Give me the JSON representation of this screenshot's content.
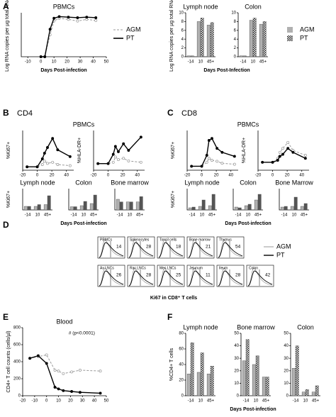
{
  "panels": [
    {
      "label": "A"
    },
    {
      "label": "B",
      "heading": "CD4"
    },
    {
      "label": "C",
      "heading": "CD8"
    },
    {
      "label": "D"
    },
    {
      "label": "E"
    },
    {
      "label": "F"
    }
  ],
  "chart_data": [
    {
      "type": "line",
      "title": "PBMCs",
      "ylabel": "Log RNA copies per µg total RNA",
      "xlabel": "Days Post-infection",
      "x": [
        0,
        3,
        7,
        10,
        14,
        21,
        28,
        35,
        42
      ],
      "xlim": [
        -15,
        50
      ],
      "xticks": [
        -10,
        0,
        10,
        20,
        30,
        40,
        50
      ],
      "ylim": [
        0,
        8
      ],
      "legend": true,
      "series": [
        {
          "name": "AGM",
          "color": "#999999",
          "dashed": true,
          "values": [
            0,
            0,
            4,
            6.5,
            7,
            6.8,
            6.5,
            6.8,
            6.6
          ]
        },
        {
          "name": "PT",
          "color": "#000000",
          "values": [
            0,
            0,
            5,
            7,
            7.3,
            7.2,
            7.1,
            7.2,
            7.1
          ]
        }
      ]
    },
    {
      "type": "bar",
      "title": "Lymph node",
      "ylabel": "Log RNA copies per µg total RNA",
      "xlabel": "Days Post-Infection",
      "categories": [
        "-14",
        "10",
        "45+"
      ],
      "ylim": [
        0,
        10
      ],
      "yticks": [
        0,
        2,
        4,
        6,
        8,
        10
      ],
      "legend": true,
      "series": [
        {
          "name": "AGM",
          "color": "#b0b0b0",
          "values": [
            0.2,
            8,
            7.2
          ]
        },
        {
          "name": "PT",
          "color": "#333333",
          "pattern": "checker",
          "values": [
            0.2,
            8.8,
            7.8
          ]
        }
      ]
    },
    {
      "type": "bar",
      "title": "Colon",
      "categories": [
        "-14",
        "10",
        "45+"
      ],
      "ylim": [
        0,
        10
      ],
      "yticks": [
        0,
        2,
        4,
        6,
        8,
        10
      ],
      "series": [
        {
          "name": "AGM",
          "color": "#b0b0b0",
          "values": [
            0.2,
            8.3,
            7.4
          ]
        },
        {
          "name": "PT",
          "color": "#333333",
          "pattern": "checker",
          "values": [
            0.2,
            8.8,
            8
          ]
        }
      ]
    },
    {
      "type": "line",
      "title": "PBMCs",
      "ylabel": "%Ki67+",
      "x": [
        -14,
        0,
        7,
        10,
        14,
        21,
        28,
        45
      ],
      "xlim": [
        -20,
        50
      ],
      "xticks": [
        -20,
        0,
        20,
        40
      ],
      "ylim": [
        0,
        35
      ],
      "series": [
        {
          "name": "AGM",
          "color": "#999999",
          "dashed": true,
          "values": [
            3,
            3,
            5,
            8,
            6,
            7,
            5,
            4
          ]
        },
        {
          "name": "PT",
          "color": "#000000",
          "values": [
            3,
            3,
            10,
            15,
            20,
            28,
            18,
            12
          ]
        }
      ]
    },
    {
      "type": "line",
      "ylabel": "%HLA-DR+",
      "x": [
        -14,
        0,
        7,
        10,
        14,
        21,
        28,
        45
      ],
      "xlim": [
        -20,
        50
      ],
      "xticks": [
        -20,
        0,
        20,
        40
      ],
      "ylim": [
        0,
        30
      ],
      "series": [
        {
          "name": "AGM",
          "color": "#999999",
          "dashed": true,
          "values": [
            5,
            5,
            6,
            10,
            8,
            9,
            7,
            6
          ]
        },
        {
          "name": "PT",
          "color": "#000000",
          "values": [
            5,
            5,
            12,
            18,
            14,
            20,
            15,
            25
          ]
        }
      ]
    },
    {
      "type": "bar",
      "title": "Lymph node",
      "ylabel": "%Ki67+",
      "categories": [
        "-14",
        "10",
        "45+"
      ],
      "ylim": [
        0,
        12
      ],
      "series": [
        {
          "name": "AGM",
          "color": "#b0b0b0",
          "values": [
            2,
            2,
            3
          ]
        },
        {
          "name": "PT",
          "color": "#555555",
          "values": [
            2,
            3,
            8
          ]
        }
      ]
    },
    {
      "type": "bar",
      "title": "Colon",
      "xlabel": "Days Post-infection",
      "categories": [
        "-14",
        "10",
        "45+"
      ],
      "ylim": [
        0,
        20
      ],
      "series": [
        {
          "name": "AGM",
          "color": "#b0b0b0",
          "values": [
            3,
            4,
            6
          ]
        },
        {
          "name": "PT",
          "color": "#555555",
          "values": [
            3,
            8,
            14
          ]
        }
      ]
    },
    {
      "type": "bar",
      "title": "Bone marrow",
      "categories": [
        "-14",
        "10",
        "45+"
      ],
      "ylim": [
        0,
        8
      ],
      "series": [
        {
          "name": "AGM",
          "color": "#b0b0b0",
          "values": [
            4,
            3,
            3
          ]
        },
        {
          "name": "PT",
          "color": "#555555",
          "values": [
            3,
            3,
            5
          ]
        }
      ]
    },
    {
      "type": "line",
      "title": "PBMCs",
      "ylabel": "%Ki67+",
      "x": [
        -14,
        0,
        7,
        10,
        14,
        21,
        28,
        45
      ],
      "xlim": [
        -20,
        50
      ],
      "xticks": [
        -20,
        0,
        20,
        40
      ],
      "ylim": [
        0,
        40
      ],
      "series": [
        {
          "name": "AGM",
          "color": "#999999",
          "dashed": true,
          "values": [
            4,
            4,
            8,
            12,
            10,
            9,
            7,
            6
          ]
        },
        {
          "name": "PT",
          "color": "#000000",
          "values": [
            4,
            4,
            15,
            30,
            32,
            22,
            18,
            14
          ]
        }
      ]
    },
    {
      "type": "line",
      "ylabel": "%HLA-DR+",
      "x": [
        -14,
        0,
        7,
        10,
        14,
        21,
        28,
        45
      ],
      "xlim": [
        -20,
        50
      ],
      "xticks": [
        -20,
        0,
        20,
        40
      ],
      "ylim": [
        0,
        40
      ],
      "series": [
        {
          "name": "AGM",
          "color": "#999999",
          "dashed": true,
          "values": [
            8,
            8,
            12,
            18,
            22,
            28,
            20,
            15
          ]
        },
        {
          "name": "PT",
          "color": "#000000",
          "values": [
            8,
            8,
            10,
            14,
            16,
            22,
            18,
            12
          ]
        }
      ]
    },
    {
      "type": "bar",
      "title": "Lymph node",
      "ylabel": "%Ki67+",
      "categories": [
        "-14",
        "10",
        "45+"
      ],
      "ylim": [
        0,
        30
      ],
      "series": [
        {
          "name": "AGM",
          "color": "#b0b0b0",
          "values": [
            3,
            5,
            6
          ]
        },
        {
          "name": "PT",
          "color": "#555555",
          "values": [
            4,
            14,
            22
          ]
        }
      ]
    },
    {
      "type": "bar",
      "title": "Colon",
      "xlabel": "Days Post-infection",
      "categories": [
        "-14",
        "10",
        "45+"
      ],
      "ylim": [
        0,
        30
      ],
      "series": [
        {
          "name": "AGM",
          "color": "#b0b0b0",
          "values": [
            4,
            6,
            14
          ]
        },
        {
          "name": "PT",
          "color": "#555555",
          "values": [
            3,
            8,
            22
          ]
        }
      ]
    },
    {
      "type": "bar",
      "title": "Bone Marrow",
      "categories": [
        "-14",
        "10",
        "45+"
      ],
      "ylim": [
        0,
        30
      ],
      "series": [
        {
          "name": "AGM",
          "color": "#b0b0b0",
          "values": [
            4,
            5,
            5
          ]
        },
        {
          "name": "PT",
          "color": "#555555",
          "values": [
            5,
            18,
            9
          ]
        }
      ]
    },
    {
      "type": "line",
      "title": "Blood",
      "ylabel": "CD4+ T cell counts (cells/µl)",
      "annotation": "# (p<0.0001)",
      "x": [
        -14,
        -7,
        0,
        7,
        10,
        14,
        21,
        28,
        45
      ],
      "xlim": [
        -20,
        50
      ],
      "xticks": [
        -20,
        -10,
        0,
        10,
        20,
        30,
        40,
        50
      ],
      "ylim": [
        0,
        800
      ],
      "yticks": [
        0,
        200,
        400,
        600,
        800
      ],
      "series": [
        {
          "name": "AGM",
          "color": "#999999",
          "dashed": true,
          "values": [
            440,
            460,
            480,
            300,
            290,
            260,
            280,
            300,
            290
          ]
        },
        {
          "name": "PT",
          "color": "#000000",
          "values": [
            440,
            470,
            380,
            100,
            80,
            60,
            50,
            40,
            30
          ]
        }
      ]
    },
    {
      "type": "bar",
      "title": "Lymph node",
      "ylabel": "%CD4+ T cells",
      "categories": [
        "-14",
        "10",
        "45+"
      ],
      "ylim": [
        0,
        80
      ],
      "yticks": [
        0,
        20,
        40,
        60,
        80
      ],
      "series": [
        {
          "name": "AGM",
          "color": "#b0b0b0",
          "values": [
            28,
            30,
            28
          ]
        },
        {
          "name": "PT",
          "color": "#333333",
          "pattern": "checker",
          "values": [
            68,
            55,
            38
          ]
        }
      ]
    },
    {
      "type": "bar",
      "title": "Bone marrow",
      "xlabel": "Days Post-infection",
      "categories": [
        "-14",
        "10",
        "45+"
      ],
      "ylim": [
        0,
        50
      ],
      "yticks": [
        0,
        10,
        20,
        30,
        40,
        50
      ],
      "series": [
        {
          "name": "AGM",
          "color": "#b0b0b0",
          "values": [
            28,
            25,
            15
          ]
        },
        {
          "name": "PT",
          "color": "#333333",
          "pattern": "checker",
          "values": [
            45,
            32,
            15
          ]
        }
      ]
    },
    {
      "type": "bar",
      "title": "Colon",
      "categories": [
        "-14",
        "10",
        "45+"
      ],
      "ylim": [
        0,
        50
      ],
      "yticks": [
        0,
        10,
        20,
        30,
        40,
        50
      ],
      "series": [
        {
          "name": "AGM",
          "color": "#b0b0b0",
          "values": [
            22,
            3,
            3
          ]
        },
        {
          "name": "PT",
          "color": "#333333",
          "pattern": "checker",
          "values": [
            40,
            5,
            8
          ]
        }
      ]
    }
  ],
  "histograms": {
    "xlabel": "Ki67 in CD8⁺ T cells",
    "legend": [
      "AGM",
      "PT"
    ],
    "rows": [
      [
        {
          "name": "PBMCs",
          "value": 14
        },
        {
          "name": "Splenocytes",
          "value": 28
        },
        {
          "name": "Tonsil cells",
          "value": 18
        },
        {
          "name": "Bone marrow",
          "value": 21
        },
        {
          "name": "Thymus",
          "value": 54
        }
      ],
      [
        {
          "name": "Ax LNCs",
          "value": 26
        },
        {
          "name": "Rac LNCs",
          "value": 28
        },
        {
          "name": "Mes LNCs",
          "value": 25
        },
        {
          "name": "Jejunum",
          "value": 11
        },
        {
          "name": "Ileum",
          "value": 28
        },
        {
          "name": "Colon",
          "value": 42
        }
      ]
    ]
  }
}
